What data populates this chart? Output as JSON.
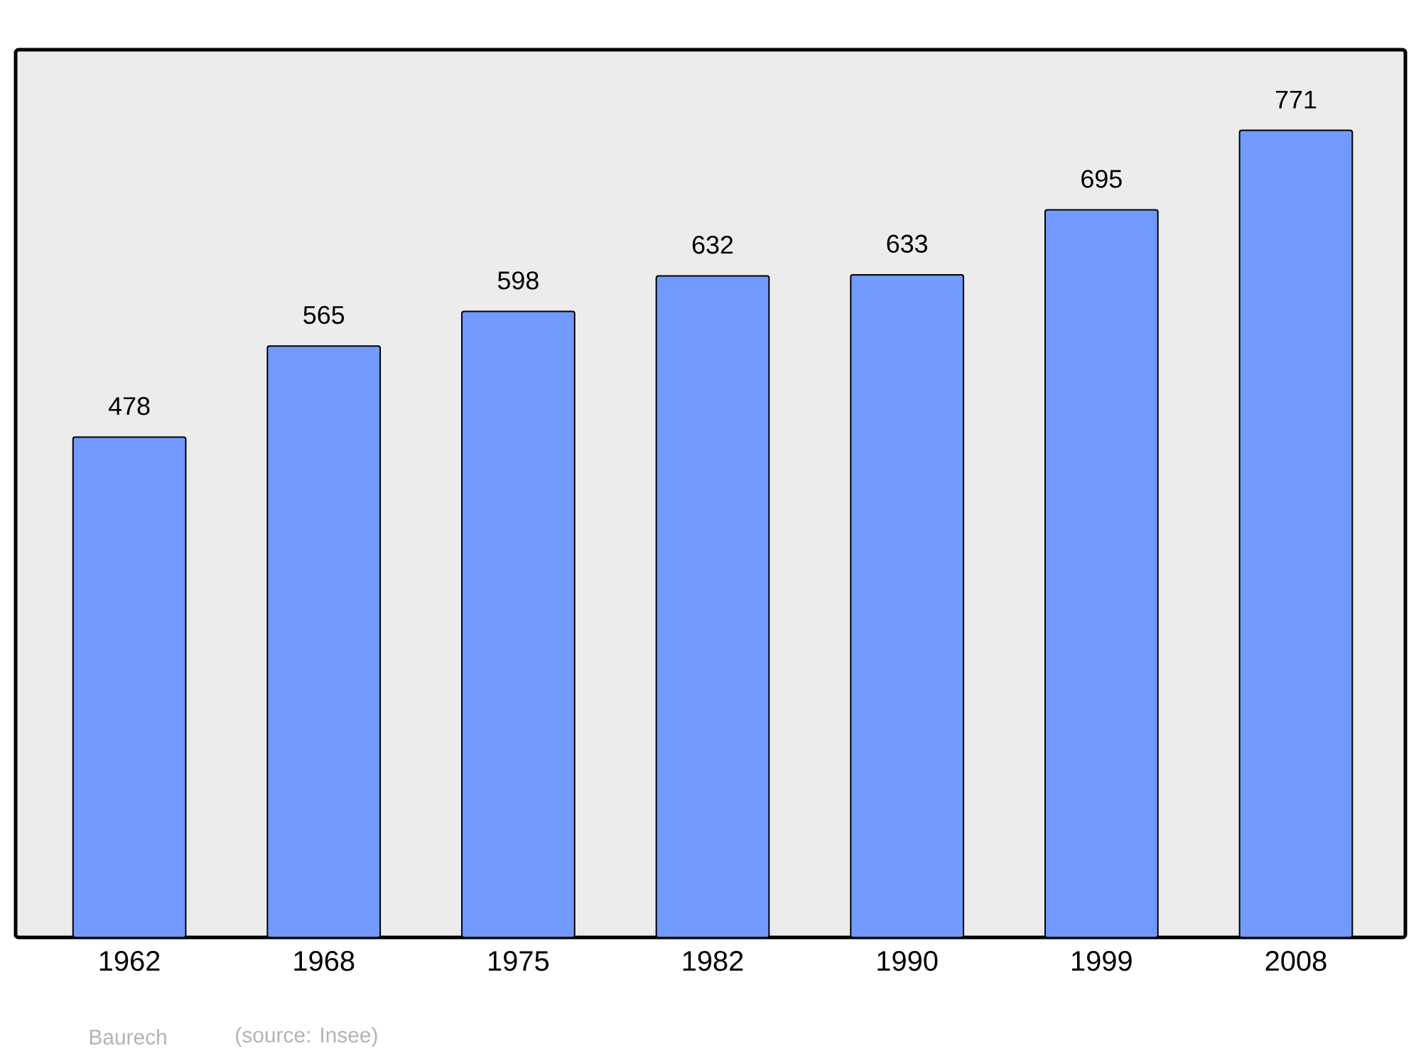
{
  "chart_data": {
    "type": "bar",
    "categories": [
      "1962",
      "1968",
      "1975",
      "1982",
      "1990",
      "1999",
      "2008"
    ],
    "values": [
      478,
      565,
      598,
      632,
      633,
      695,
      771
    ],
    "color": "#7299ff",
    "data_labels": true,
    "annotations": [
      "Baurech",
      "(source: Insee)"
    ]
  }
}
